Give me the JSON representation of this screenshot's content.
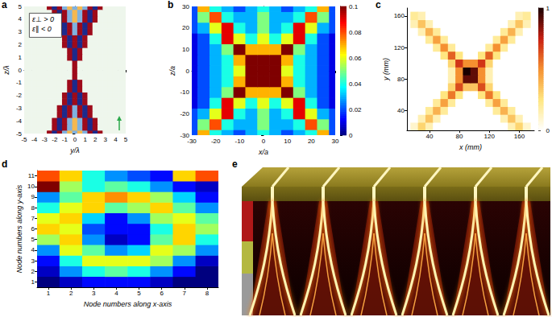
{
  "chart_data": [
    {
      "type": "heatmap",
      "title": "a",
      "xlabel": "y/λ",
      "ylabel": "z/λ",
      "annotations": [
        "ε⊥ > 0",
        "ε∥ < 0"
      ],
      "color": "diverging",
      "x": [
        -5,
        -4.5,
        -4,
        -3.5,
        -3,
        -2.5,
        -2,
        -1.5,
        -1,
        -0.5,
        0,
        0.5,
        1,
        1.5,
        2,
        2.5,
        3,
        3.5,
        4,
        4.5,
        5
      ],
      "y": [
        -5,
        -4.5,
        -4,
        -3.5,
        -3,
        -2.5,
        -2,
        -1.5,
        -1,
        -0.5,
        0,
        0.5,
        1,
        1.5,
        2,
        2.5,
        3,
        3.5,
        4,
        4.5,
        5
      ],
      "xlim": [
        -5,
        5
      ],
      "ylim": [
        -5,
        5
      ],
      "xticks": [
        -5,
        -4,
        -3,
        -2,
        -1,
        0,
        1,
        2,
        3,
        4,
        5
      ],
      "yticks": [
        -5,
        -4,
        -3,
        -2,
        -1,
        0,
        1,
        2,
        3,
        4,
        5
      ],
      "cells": [
        [
          0,
          0,
          0,
          0,
          0,
          1,
          -1,
          1,
          -0.5,
          0.5,
          -0.5,
          0.5,
          -0.5,
          1,
          -1,
          1,
          0,
          0,
          0,
          0,
          0
        ],
        [
          0,
          0,
          0,
          0,
          0,
          0,
          1,
          -1,
          1,
          -0.5,
          0.5,
          -0.5,
          1,
          -1,
          1,
          0,
          0,
          0,
          0,
          0,
          0
        ],
        [
          0,
          0,
          0,
          0,
          0,
          0,
          1,
          -1,
          1,
          -0.5,
          0.5,
          -0.5,
          1,
          -1,
          1,
          0,
          0,
          0,
          0,
          0,
          0
        ],
        [
          0,
          0,
          0,
          0,
          0,
          0,
          0,
          1,
          -1,
          1,
          -0.5,
          1,
          -1,
          1,
          0,
          0,
          0,
          0,
          0,
          0,
          0
        ],
        [
          0,
          0,
          0,
          0,
          0,
          0,
          0,
          1,
          -1,
          1,
          -0.5,
          1,
          -1,
          1,
          0,
          0,
          0,
          0,
          0,
          0,
          0
        ],
        [
          0,
          0,
          0,
          0,
          0,
          0,
          0,
          0,
          1,
          -1,
          1,
          -1,
          1,
          0,
          0,
          0,
          0,
          0,
          0,
          0,
          0
        ],
        [
          0,
          0,
          0,
          0,
          0,
          0,
          0,
          0,
          1,
          -1,
          1,
          -1,
          1,
          0,
          0,
          0,
          0,
          0,
          0,
          0,
          0
        ],
        [
          0,
          0,
          0,
          0,
          0,
          0,
          0,
          0,
          0,
          1,
          -1,
          1,
          0,
          0,
          0,
          0,
          0,
          0,
          0,
          0,
          0
        ],
        [
          0,
          0,
          0,
          0,
          0,
          0,
          0,
          0,
          0,
          1,
          -1,
          1,
          0,
          0,
          0,
          0,
          0,
          0,
          0,
          0,
          0
        ],
        [
          0,
          0,
          0,
          0,
          0,
          0,
          0,
          0,
          0,
          0,
          1,
          0,
          0,
          0,
          0,
          0,
          0,
          0,
          0,
          0,
          0
        ],
        [
          0,
          0,
          0,
          0,
          0,
          0,
          0,
          0,
          0,
          0,
          1,
          0,
          0,
          0,
          0,
          0,
          0,
          0,
          0,
          0,
          0
        ],
        [
          0,
          0,
          0,
          0,
          0,
          0,
          0,
          0,
          0,
          0,
          1,
          0,
          0,
          0,
          0,
          0,
          0,
          0,
          0,
          0,
          0
        ],
        [
          0,
          0,
          0,
          0,
          0,
          0,
          0,
          0,
          0,
          1,
          -1,
          1,
          0,
          0,
          0,
          0,
          0,
          0,
          0,
          0,
          0
        ],
        [
          0,
          0,
          0,
          0,
          0,
          0,
          0,
          0,
          0,
          1,
          -1,
          1,
          0,
          0,
          0,
          0,
          0,
          0,
          0,
          0,
          0
        ],
        [
          0,
          0,
          0,
          0,
          0,
          0,
          0,
          0,
          1,
          -1,
          1,
          -1,
          1,
          0,
          0,
          0,
          0,
          0,
          0,
          0,
          0
        ],
        [
          0,
          0,
          0,
          0,
          0,
          0,
          0,
          0,
          1,
          -1,
          1,
          -1,
          1,
          0,
          0,
          0,
          0,
          0,
          0,
          0,
          0
        ],
        [
          0,
          0,
          0,
          0,
          0,
          0,
          0,
          1,
          -1,
          1,
          -0.5,
          1,
          -1,
          1,
          0,
          0,
          0,
          0,
          0,
          0,
          0
        ],
        [
          0,
          0,
          0,
          0,
          0,
          0,
          0,
          1,
          -1,
          1,
          -0.5,
          1,
          -1,
          1,
          0,
          0,
          0,
          0,
          0,
          0,
          0
        ],
        [
          0,
          0,
          0,
          0,
          0,
          0,
          1,
          -1,
          1,
          -0.5,
          0.5,
          -0.5,
          1,
          -1,
          1,
          0,
          0,
          0,
          0,
          0,
          0
        ],
        [
          0,
          0,
          0,
          0,
          0,
          0,
          1,
          -1,
          1,
          -0.5,
          0.5,
          -0.5,
          1,
          -1,
          1,
          0,
          0,
          0,
          0,
          0,
          0
        ],
        [
          0,
          0,
          0,
          0,
          0,
          1,
          -1,
          1,
          -0.5,
          0.5,
          -0.5,
          0.5,
          -0.5,
          1,
          -1,
          1,
          0,
          0,
          0,
          0,
          0
        ]
      ]
    },
    {
      "type": "heatmap",
      "title": "b",
      "xlabel": "x/a",
      "ylabel": "z/a",
      "color": "jet",
      "x": [
        -30,
        -25,
        -20,
        -15,
        -10,
        -5,
        0,
        5,
        10,
        15,
        20,
        25,
        30
      ],
      "y": [
        -30,
        -25,
        -20,
        -15,
        -10,
        -5,
        0,
        5,
        10,
        15,
        20,
        25,
        30
      ],
      "xlim": [
        -30,
        30
      ],
      "ylim": [
        -30,
        30
      ],
      "xticks": [
        -30,
        -20,
        -10,
        0,
        10,
        20,
        30
      ],
      "yticks": [
        -30,
        -20,
        -10,
        0,
        10,
        20,
        30
      ],
      "colorbar": {
        "lim": [
          0,
          0.1
        ],
        "ticks": [
          0,
          0.02,
          0.04,
          0.06,
          0.08,
          0.1
        ]
      },
      "cells": [
        [
          0.02,
          0.07,
          0.04,
          0.03,
          0.02,
          0.03,
          0.04,
          0.03,
          0.02,
          0.03,
          0.04,
          0.07,
          0.02
        ],
        [
          0.02,
          0.05,
          0.08,
          0.04,
          0.03,
          0.03,
          0.05,
          0.03,
          0.03,
          0.04,
          0.08,
          0.05,
          0.02
        ],
        [
          0.02,
          0.03,
          0.06,
          0.09,
          0.04,
          0.03,
          0.05,
          0.03,
          0.04,
          0.09,
          0.06,
          0.03,
          0.02
        ],
        [
          0.01,
          0.02,
          0.04,
          0.09,
          0.06,
          0.04,
          0.06,
          0.04,
          0.06,
          0.09,
          0.04,
          0.02,
          0.01
        ],
        [
          0.01,
          0.02,
          0.03,
          0.05,
          0.1,
          0.07,
          0.07,
          0.07,
          0.1,
          0.05,
          0.03,
          0.02,
          0.01
        ],
        [
          0.01,
          0.02,
          0.03,
          0.04,
          0.07,
          0.1,
          0.1,
          0.1,
          0.07,
          0.04,
          0.03,
          0.02,
          0.01
        ],
        [
          0.01,
          0.02,
          0.03,
          0.04,
          0.06,
          0.1,
          0.1,
          0.1,
          0.06,
          0.04,
          0.03,
          0.02,
          0.01
        ],
        [
          0.01,
          0.02,
          0.03,
          0.04,
          0.07,
          0.1,
          0.1,
          0.1,
          0.07,
          0.04,
          0.03,
          0.02,
          0.01
        ],
        [
          0.01,
          0.02,
          0.03,
          0.05,
          0.1,
          0.07,
          0.07,
          0.07,
          0.1,
          0.05,
          0.03,
          0.02,
          0.01
        ],
        [
          0.01,
          0.02,
          0.04,
          0.09,
          0.06,
          0.04,
          0.06,
          0.04,
          0.06,
          0.09,
          0.04,
          0.02,
          0.01
        ],
        [
          0.02,
          0.03,
          0.06,
          0.09,
          0.04,
          0.03,
          0.05,
          0.03,
          0.04,
          0.09,
          0.06,
          0.03,
          0.02
        ],
        [
          0.02,
          0.05,
          0.08,
          0.04,
          0.03,
          0.03,
          0.05,
          0.03,
          0.03,
          0.04,
          0.08,
          0.05,
          0.02
        ],
        [
          0.02,
          0.07,
          0.04,
          0.03,
          0.02,
          0.03,
          0.04,
          0.03,
          0.02,
          0.03,
          0.04,
          0.07,
          0.02
        ]
      ]
    },
    {
      "type": "heatmap",
      "title": "c",
      "xlabel": "x (mm)",
      "ylabel": "y (mm)",
      "color": "hot",
      "x": [
        20,
        30,
        40,
        50,
        60,
        70,
        80,
        90,
        100,
        110,
        120,
        130,
        140,
        150,
        160,
        170
      ],
      "y": [
        20,
        30,
        40,
        50,
        60,
        70,
        80,
        90,
        100,
        110,
        120,
        130,
        140,
        150,
        160
      ],
      "xlim": [
        10,
        180
      ],
      "ylim": [
        15,
        170
      ],
      "xticks": [
        40,
        80,
        120,
        160
      ],
      "yticks": [
        40,
        80,
        120,
        160
      ],
      "colorbar": {
        "lim": [
          0,
          1
        ],
        "ticks": [
          0,
          1
        ]
      },
      "cells": [
        [
          0.1,
          0.3,
          0.15,
          0,
          0,
          0,
          0,
          0,
          0,
          0,
          0,
          0,
          0,
          0.15,
          0.3,
          0.1
        ],
        [
          0,
          0.15,
          0.35,
          0.15,
          0,
          0,
          0,
          0,
          0,
          0,
          0,
          0,
          0.15,
          0.35,
          0.15,
          0
        ],
        [
          0,
          0,
          0.2,
          0.4,
          0.2,
          0,
          0,
          0,
          0,
          0,
          0,
          0.2,
          0.4,
          0.2,
          0,
          0
        ],
        [
          0,
          0,
          0,
          0.2,
          0.45,
          0.2,
          0,
          0,
          0,
          0,
          0.2,
          0.45,
          0.2,
          0,
          0,
          0
        ],
        [
          0,
          0,
          0,
          0,
          0.25,
          0.55,
          0.25,
          0,
          0,
          0.25,
          0.55,
          0.25,
          0,
          0,
          0,
          0
        ],
        [
          0,
          0,
          0,
          0,
          0,
          0.3,
          0.65,
          0.35,
          0.35,
          0.65,
          0.3,
          0,
          0,
          0,
          0,
          0
        ],
        [
          0,
          0,
          0,
          0,
          0,
          0.15,
          0.5,
          0.9,
          0.9,
          0.5,
          0.15,
          0,
          0,
          0,
          0,
          0
        ],
        [
          0,
          0,
          0,
          0,
          0,
          0.15,
          0.5,
          1,
          0.9,
          0.5,
          0.15,
          0,
          0,
          0,
          0,
          0
        ],
        [
          0,
          0,
          0,
          0,
          0,
          0.3,
          0.7,
          0.5,
          0.5,
          0.7,
          0.3,
          0,
          0,
          0,
          0,
          0
        ],
        [
          0,
          0,
          0,
          0,
          0.25,
          0.6,
          0.25,
          0,
          0,
          0.25,
          0.6,
          0.25,
          0,
          0,
          0,
          0
        ],
        [
          0,
          0,
          0,
          0.2,
          0.5,
          0.2,
          0,
          0,
          0,
          0,
          0.2,
          0.5,
          0.2,
          0,
          0,
          0
        ],
        [
          0,
          0,
          0.2,
          0.45,
          0.2,
          0,
          0,
          0,
          0,
          0,
          0,
          0.2,
          0.45,
          0.2,
          0,
          0
        ],
        [
          0,
          0.15,
          0.4,
          0.2,
          0,
          0,
          0,
          0,
          0,
          0,
          0,
          0,
          0.2,
          0.4,
          0.15,
          0
        ],
        [
          0.15,
          0.35,
          0.15,
          0,
          0,
          0,
          0,
          0,
          0,
          0,
          0,
          0,
          0,
          0.15,
          0.35,
          0.15
        ],
        [
          0.2,
          0.15,
          0,
          0,
          0,
          0,
          0,
          0,
          0,
          0,
          0,
          0,
          0,
          0,
          0.15,
          0.2
        ]
      ]
    },
    {
      "type": "heatmap",
      "title": "d",
      "xlabel": "Node numbers along x-axis",
      "ylabel": "Node numbers along y-axis",
      "color": "jet",
      "x": [
        1,
        2,
        3,
        4,
        5,
        6,
        7,
        8
      ],
      "y": [
        1,
        2,
        3,
        4,
        5,
        6,
        7,
        8,
        9,
        10,
        11
      ],
      "xlim": [
        0.5,
        8.5
      ],
      "ylim": [
        0.5,
        11.5
      ],
      "xticks": [
        1,
        2,
        3,
        4,
        5,
        6,
        7,
        8
      ],
      "yticks": [
        1,
        2,
        3,
        4,
        5,
        6,
        7,
        8,
        9,
        10,
        11
      ],
      "cells": [
        [
          0.1,
          0.15,
          0.2,
          0.2,
          0.2,
          0.15,
          0.1,
          0.1
        ],
        [
          0.15,
          0.3,
          0.4,
          0.45,
          0.4,
          0.3,
          0.2,
          0.1
        ],
        [
          0.2,
          0.4,
          0.55,
          0.55,
          0.55,
          0.5,
          0.3,
          0.15
        ],
        [
          0.3,
          0.55,
          0.45,
          0.3,
          0.35,
          0.55,
          0.5,
          0.3
        ],
        [
          0.5,
          0.6,
          0.3,
          0.15,
          0.2,
          0.45,
          0.6,
          0.4
        ],
        [
          0.6,
          0.55,
          0.25,
          0.2,
          0.2,
          0.4,
          0.6,
          0.5
        ],
        [
          0.55,
          0.6,
          0.35,
          0.2,
          0.3,
          0.5,
          0.55,
          0.45
        ],
        [
          0.4,
          0.55,
          0.6,
          0.45,
          0.5,
          0.6,
          0.45,
          0.3
        ],
        [
          0.3,
          0.45,
          0.6,
          0.65,
          0.6,
          0.5,
          0.35,
          0.2
        ],
        [
          0.85,
          0.5,
          0.4,
          0.45,
          0.4,
          0.3,
          0.2,
          0.15
        ],
        [
          0.7,
          0.6,
          0.4,
          0.3,
          0.25,
          0.2,
          0.6,
          0.7
        ]
      ]
    }
  ],
  "illustration": {
    "title": "e"
  }
}
